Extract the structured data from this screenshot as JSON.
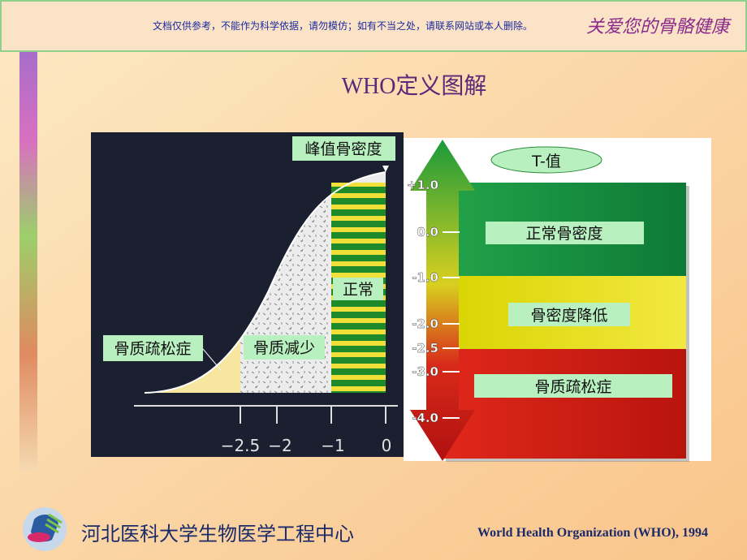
{
  "banner": {
    "notice": "文档仅供参考，不能作为科学依据，请勿模仿；如有不当之处，请联系网站或本人删除。",
    "slogan": "关爱您的骨骼健康"
  },
  "title": "WHO定义图解",
  "curve_panel": {
    "peak_label": "峰值骨密度",
    "normal_label": "正常",
    "osteoporosis_label": "骨质疏松症",
    "osteopenia_label": "骨质减少",
    "axis_labels": [
      "−2.5",
      "−2",
      "−1",
      "0"
    ]
  },
  "t_panel": {
    "header": "T-值",
    "ticks": [
      "+1.0",
      "0.0",
      "-1.0",
      "-2.0",
      "-2.5",
      "-3.0",
      "-4.0"
    ],
    "zones": [
      "正常骨密度",
      "骨密度降低",
      "骨质疏松症"
    ]
  },
  "footer": {
    "institution": "河北医科大学生物医学工程中心",
    "source": "World Health Organization (WHO), 1994"
  }
}
